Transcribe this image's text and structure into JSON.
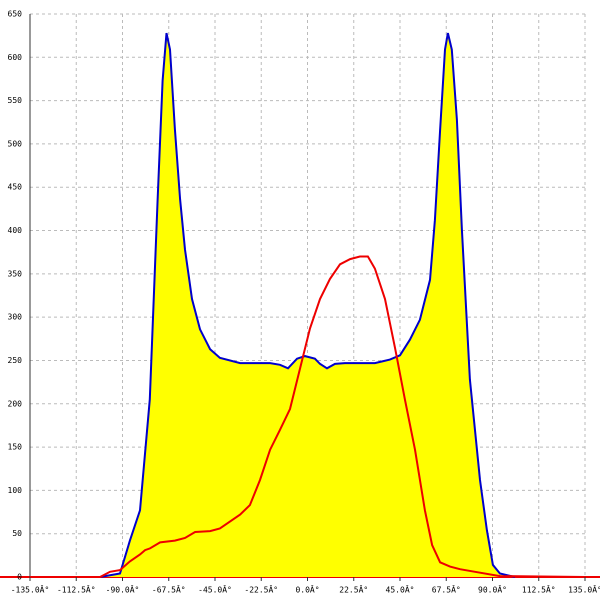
{
  "chart_data": {
    "type": "line",
    "xlim": [
      -135,
      135
    ],
    "xticks": [
      {
        "value": -135,
        "label": "-135.0Â°"
      },
      {
        "value": -112.5,
        "label": "-112.5Â°"
      },
      {
        "value": -90,
        "label": "-90.0Â°"
      },
      {
        "value": -67.5,
        "label": "-67.5Â°"
      },
      {
        "value": -45,
        "label": "-45.0Â°"
      },
      {
        "value": -22.5,
        "label": "-22.5Â°"
      },
      {
        "value": 0,
        "label": "0.0Â°"
      },
      {
        "value": 22.5,
        "label": "22.5Â°"
      },
      {
        "value": 45,
        "label": "45.0Â°"
      },
      {
        "value": 67.5,
        "label": "67.5Â°"
      },
      {
        "value": 90,
        "label": "90.0Â°"
      },
      {
        "value": 112.5,
        "label": "112.5Â°"
      },
      {
        "value": 135,
        "label": "135.0Â°"
      }
    ],
    "ylim": [
      0,
      650
    ],
    "yticks": [
      0,
      50,
      100,
      150,
      200,
      250,
      300,
      350,
      400,
      450,
      500,
      550,
      600,
      650
    ],
    "grid": true,
    "series": [
      {
        "color": "#0000cc",
        "fill": "#ffff00",
        "x": [
          -100.9,
          -91.2,
          -86.4,
          -81.5,
          -76.7,
          -72.9,
          -70.5,
          -68.6,
          -66.9,
          -64.5,
          -62.0,
          -59.6,
          -56.2,
          -52.3,
          -47.4,
          -42.6,
          -32.8,
          -18.2,
          -13.4,
          -9.5,
          -5.1,
          -1.2,
          3.6,
          6.1,
          9.5,
          13.4,
          18.2,
          32.8,
          40.1,
          45.0,
          49.8,
          54.7,
          59.6,
          62.0,
          64.5,
          66.9,
          68.3,
          70.2,
          72.7,
          75.1,
          79.0,
          83.9,
          87.3,
          90.2,
          93.6,
          100.9
        ],
        "values": [
          0,
          4,
          42,
          77,
          205,
          435,
          573,
          628,
          609,
          517,
          436,
          378,
          321,
          286,
          263,
          253,
          247,
          247,
          245,
          241,
          252,
          255,
          252,
          246,
          241,
          246,
          247,
          247,
          251,
          256,
          274,
          297,
          343,
          412,
          516,
          609,
          628,
          609,
          528,
          401,
          228,
          112,
          54,
          14,
          4,
          0
        ]
      },
      {
        "color": "#ee0000",
        "x": [
          -135,
          -100.9,
          -96.1,
          -91.2,
          -86.4,
          -81.5,
          -79.0,
          -76.6,
          -71.7,
          -64.5,
          -59.6,
          -54.7,
          -47.4,
          -42.6,
          -32.8,
          -28.0,
          -23.1,
          -18.2,
          -13.4,
          -8.5,
          -3.6,
          1.2,
          6.1,
          10.9,
          15.8,
          20.7,
          25.5,
          29.4,
          32.8,
          37.7,
          42.6,
          47.4,
          52.3,
          57.1,
          60.6,
          64.5,
          69.3,
          74.2,
          81.5,
          93.6,
          135
        ],
        "values": [
          0,
          0,
          6,
          8,
          18,
          26,
          31,
          33,
          40,
          42,
          45,
          52,
          53,
          56,
          72,
          83,
          112,
          147,
          170,
          194,
          241,
          287,
          321,
          344,
          361,
          367,
          370,
          370,
          356,
          321,
          264,
          205,
          147,
          77,
          37,
          17,
          12,
          9,
          6,
          1,
          0
        ]
      }
    ]
  }
}
